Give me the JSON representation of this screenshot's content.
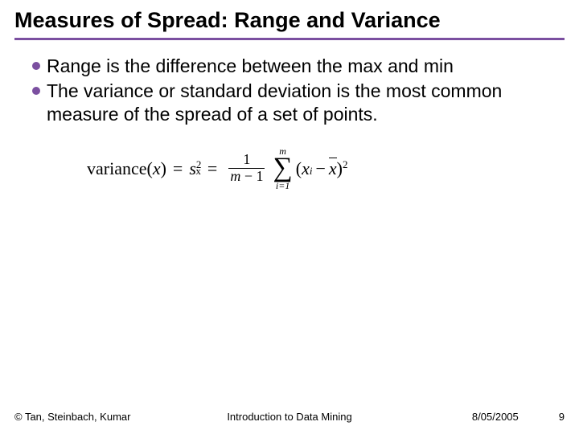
{
  "title": "Measures of Spread: Range and Variance",
  "bullets": [
    "Range is the difference between the max and min",
    "The variance or standard deviation is the most common measure of the spread of a set of points."
  ],
  "formula": {
    "lhs_text": "variance",
    "lhs_arg": "x",
    "sym_var": "s",
    "sym_sub": "x",
    "sym_sup": "2",
    "frac_num": "1",
    "frac_den_left": "m",
    "frac_den_right": "1",
    "sum_top": "m",
    "sum_bot_left": "i",
    "sum_bot_right": "1",
    "term_x": "x",
    "term_xsub": "i",
    "term_xbar": "x",
    "term_exp": "2"
  },
  "footer": {
    "copyright": "© Tan, Steinbach, Kumar",
    "center": "Introduction to Data Mining",
    "date": "8/05/2005",
    "page": "9"
  },
  "colors": {
    "accent": "#7b4fa0",
    "text": "#000000",
    "background": "#ffffff"
  }
}
